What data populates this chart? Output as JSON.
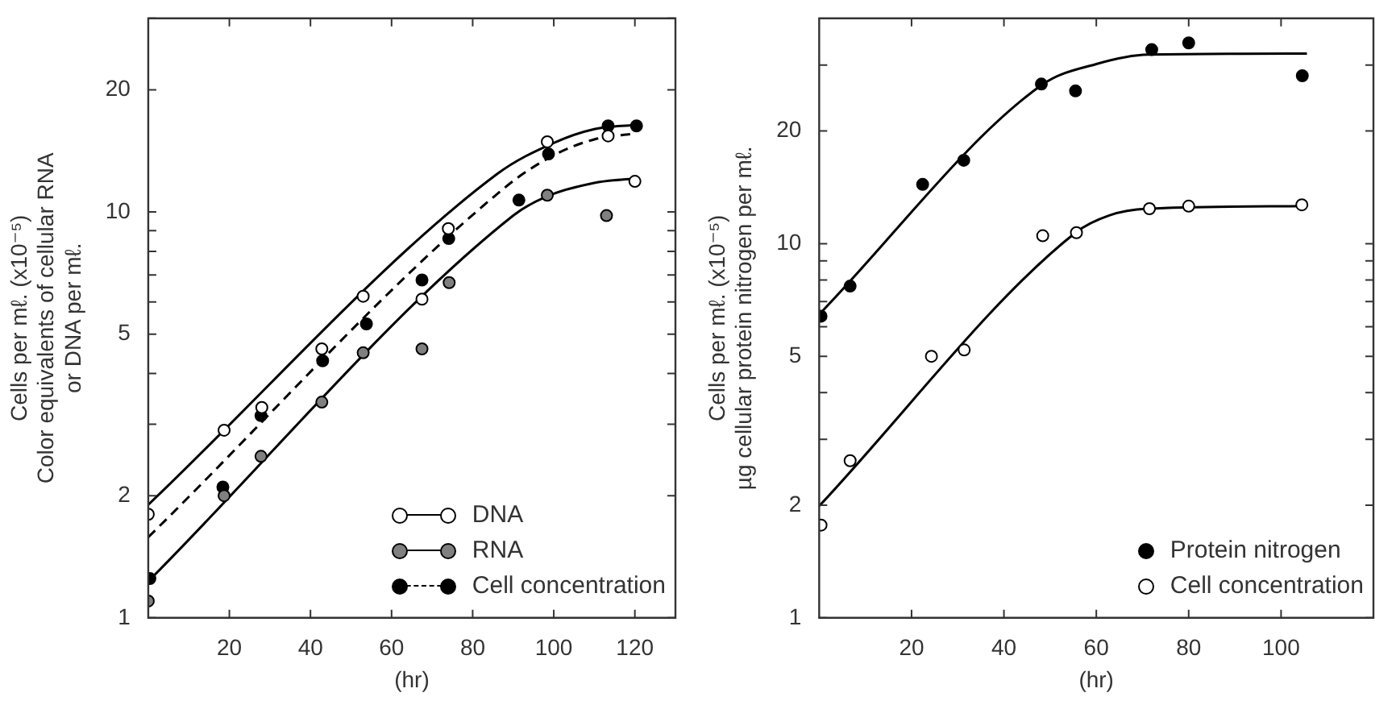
{
  "chart_data": [
    {
      "type": "scatter",
      "xlabel": "(hr)",
      "ylabel": "Cells per mℓ. (x10⁻⁵)\nColor equivalents of cellular RNA\nor DNA per mℓ.",
      "log": "y",
      "marker": "circle",
      "legend": "bottom right",
      "xlim": [
        0,
        130
      ],
      "xticks": [
        20,
        40,
        60,
        80,
        100,
        120
      ],
      "ylim": [
        1,
        30
      ],
      "yticks": [
        1,
        2,
        {
          "value": 3,
          "label": null
        },
        {
          "value": 4,
          "label": null
        },
        5,
        {
          "value": 6,
          "label": null
        },
        {
          "value": 7,
          "label": null
        },
        {
          "value": 8,
          "label": null
        },
        {
          "value": 9,
          "label": null
        },
        10,
        20,
        {
          "value": 30,
          "label": null
        }
      ],
      "series": [
        {
          "name": "DNA",
          "color": "#ffffff",
          "line_style": "solid",
          "x": [
            0,
            18.7,
            28,
            42.8,
            53,
            67.5,
            74,
            98.4,
            113.4,
            120
          ],
          "values": [
            1.8,
            2.9,
            3.3,
            4.6,
            6.2,
            6.1,
            9.1,
            14.9,
            15.4,
            11.9
          ]
        },
        {
          "name": "RNA",
          "color": "#808080",
          "line_style": "solid",
          "x": [
            0,
            18.7,
            27.8,
            42.8,
            53,
            67.5,
            74.2,
            98.4,
            113
          ],
          "values": [
            1.1,
            2.0,
            2.5,
            3.4,
            4.5,
            4.6,
            6.7,
            11.0,
            9.8
          ]
        },
        {
          "name": "Cell concentration",
          "color": "#000000",
          "line_style": "dashed",
          "x": [
            0.4,
            18.4,
            27.8,
            43,
            53.8,
            67.5,
            74.1,
            91.4,
            98.7,
            113.4,
            120.4
          ],
          "values": [
            1.25,
            2.1,
            3.15,
            4.3,
            5.3,
            6.8,
            8.6,
            10.7,
            13.9,
            16.3,
            16.3
          ]
        },
        {
          "type": "line",
          "color": "#000000",
          "line_style": "solid",
          "marker": "none",
          "x": [
            0,
            86,
            100,
            110,
            120
          ],
          "values": [
            1.9,
            12.4,
            14.8,
            16,
            16.4
          ]
        },
        {
          "type": "line",
          "color": "#000000",
          "line_style": "solid",
          "marker": "none",
          "x": [
            0,
            90,
            98,
            110,
            120
          ],
          "values": [
            1.23,
            9.8,
            10.9,
            11.8,
            12.1
          ]
        },
        {
          "type": "line",
          "color": "#000000",
          "line_style": "dashed",
          "marker": "none",
          "x": [
            0,
            88,
            100,
            110,
            120
          ],
          "values": [
            1.58,
            11.5,
            13.8,
            15.1,
            15.6
          ]
        }
      ]
    },
    {
      "type": "scatter",
      "xlabel": "(hr)",
      "ylabel": "Cells per mℓ. (x10⁻⁵)\nµg cellular protein nitrogen per mℓ.",
      "log": "y",
      "marker": "circle",
      "legend": "bottom right",
      "xlim": [
        0,
        120
      ],
      "xticks": [
        20,
        40,
        60,
        80,
        100
      ],
      "ylim": [
        1,
        40
      ],
      "yticks": [
        1,
        2,
        {
          "value": 3,
          "label": null
        },
        {
          "value": 4,
          "label": null
        },
        5,
        {
          "value": 6,
          "label": null
        },
        {
          "value": 7,
          "label": null
        },
        {
          "value": 8,
          "label": null
        },
        {
          "value": 9,
          "label": null
        },
        10,
        20,
        {
          "value": 30,
          "label": null
        }
      ],
      "series": [
        {
          "name": "Protein nitrogen",
          "color": "#000000",
          "x": [
            0.4,
            6.7,
            22.4,
            31.3,
            48.1,
            55.5,
            72,
            80,
            104.6
          ],
          "values": [
            6.4,
            7.7,
            14.4,
            16.7,
            26.7,
            25.6,
            33,
            34.4,
            28.1
          ]
        },
        {
          "name": "Cell concentration",
          "color": "#ffffff",
          "x": [
            0.4,
            6.7,
            24.3,
            31.4,
            48.4,
            55.7,
            71.5,
            80,
            104.5
          ],
          "values": [
            1.77,
            2.63,
            5.0,
            5.2,
            10.5,
            10.7,
            12.4,
            12.6,
            12.7
          ]
        },
        {
          "type": "line",
          "color": "#000000",
          "line_style": "solid",
          "marker": "none",
          "x": [
            0,
            48.1,
            60,
            71.2,
            105.6
          ],
          "values": [
            6.47,
            26.5,
            30.2,
            32,
            32.2
          ]
        },
        {
          "type": "line",
          "color": "#000000",
          "line_style": "solid",
          "marker": "none",
          "x": [
            0,
            55.5,
            62.8,
            71,
            105
          ],
          "values": [
            1.99,
            10.7,
            11.9,
            12.4,
            12.6
          ]
        }
      ]
    }
  ]
}
